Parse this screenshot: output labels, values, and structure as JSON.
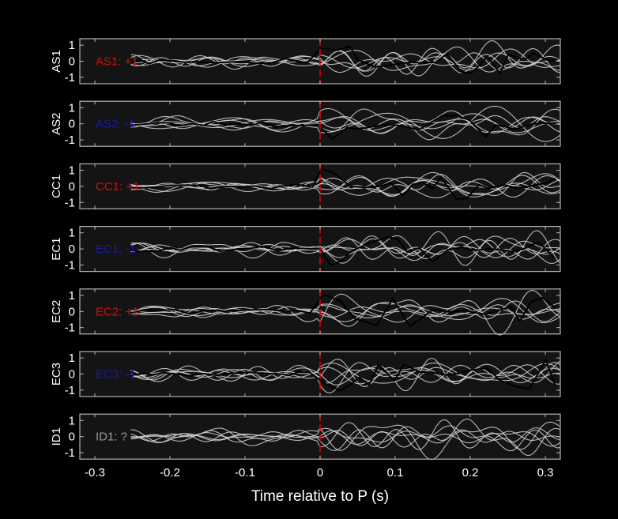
{
  "colors": {
    "page_background": "#000000",
    "axes_background": "#141414",
    "axes_frame": "#b4b4b4",
    "tick_text": "#ffffff",
    "p_marker": "#dd0000",
    "positive_polarity": "#cc1111",
    "negative_polarity": "#1a1aaa",
    "unknown_polarity": "#9a9a9a",
    "reference_traces": "#d2d2d2",
    "station_trace": "#000000"
  },
  "chart_data": {
    "type": "line",
    "xlabel": "Time relative to P (s)",
    "xlim": [
      -0.32,
      0.32
    ],
    "ylim": [
      -1.4,
      1.4
    ],
    "xticks": [
      -0.3,
      -0.2,
      -0.1,
      0,
      0.1,
      0.2,
      0.3
    ],
    "xtick_labels": [
      "-0.3",
      "-0.2",
      "-0.1",
      "0",
      "0.1",
      "0.2",
      "0.3"
    ],
    "yticks": [
      1,
      0,
      -1
    ],
    "ytick_labels": [
      "1",
      "0",
      "-1"
    ],
    "p_arrival_marker": 0,
    "grid": false,
    "panels": [
      {
        "station": "AS1",
        "label": "AS1: +1",
        "polarity": "positive",
        "has_station_trace": true
      },
      {
        "station": "AS2",
        "label": "AS2: -1",
        "polarity": "negative",
        "has_station_trace": true
      },
      {
        "station": "CC1",
        "label": "CC1: +1",
        "polarity": "positive",
        "has_station_trace": true
      },
      {
        "station": "EC1",
        "label": "EC1: -1",
        "polarity": "negative",
        "has_station_trace": true
      },
      {
        "station": "EC2",
        "label": "EC2: +1",
        "polarity": "positive",
        "has_station_trace": true
      },
      {
        "station": "EC3",
        "label": "EC3: -1",
        "polarity": "negative",
        "has_station_trace": true
      },
      {
        "station": "ID1",
        "label": "ID1: ?",
        "polarity": "unknown",
        "has_station_trace": false
      }
    ]
  }
}
